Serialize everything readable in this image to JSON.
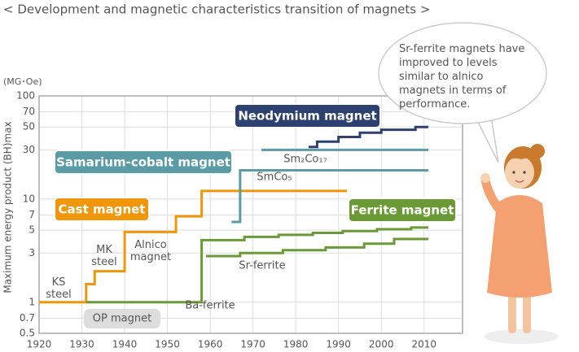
{
  "chart_data": {
    "type": "line",
    "title": "< Development and magnetic characteristics transition of magnets >",
    "y_unit": "(MG･Oe)",
    "y_label": "Maximum energy product (BH)max",
    "log_y": true,
    "grid": true,
    "xlim": [
      1920,
      2019
    ],
    "xticks": [
      1920,
      1930,
      1940,
      1950,
      1960,
      1970,
      1980,
      1990,
      2000,
      2010
    ],
    "ylim": [
      0.5,
      100
    ],
    "yticks": [
      0.5,
      0.7,
      1,
      3,
      5,
      7,
      10,
      30,
      50,
      70,
      100
    ],
    "series": [
      {
        "name": "Cast magnet",
        "color": "#f0960a",
        "x": [
          1920,
          1931,
          1931,
          1933,
          1933,
          1940,
          1940,
          1952,
          1952,
          1958,
          1958,
          1992
        ],
        "values": [
          1,
          1,
          1.5,
          1.5,
          2,
          2,
          4.8,
          4.8,
          6.8,
          6.8,
          12,
          12
        ]
      },
      {
        "name": "Ferrite magnet",
        "color": "#6a9a35",
        "x": [
          1931,
          1958,
          1958,
          1968,
          1968,
          1976,
          1976,
          1984,
          1984,
          1991,
          1991,
          1999,
          1999,
          2007,
          2007,
          2011
        ],
        "values": [
          1,
          1,
          4,
          4,
          4.3,
          4.3,
          4.5,
          4.5,
          4.7,
          4.7,
          4.9,
          4.9,
          5.1,
          5.1,
          5.3,
          5.3
        ]
      },
      {
        "color": "#6a9a35",
        "x": [
          1959,
          1967,
          1967,
          1977,
          1977,
          1987,
          1987,
          1996,
          1996,
          2003,
          2003,
          2011
        ],
        "values": [
          2.8,
          2.8,
          3,
          3,
          3.2,
          3.2,
          3.4,
          3.4,
          3.7,
          3.7,
          4.1,
          4.1
        ]
      },
      {
        "name": "Samarium-cobalt magnet",
        "color": "#5b9ba6",
        "x": [
          1965,
          1967,
          1967,
          2011
        ],
        "values": [
          6,
          6,
          19,
          19
        ]
      },
      {
        "color": "#5b9ba6",
        "x": [
          1972,
          2011
        ],
        "values": [
          30,
          30
        ]
      },
      {
        "name": "Neodymium magnet",
        "color": "#2d4170",
        "x": [
          1983,
          1985,
          1985,
          1990,
          1990,
          1995,
          1995,
          2000,
          2000,
          2008,
          2008,
          2011
        ],
        "values": [
          32,
          32,
          36,
          36,
          40,
          40,
          44,
          44,
          47,
          47,
          50,
          50
        ]
      }
    ],
    "annotations": [
      "KS steel",
      "MK steel",
      "Alnico magnet",
      "OP magnet",
      "Ba-ferrite",
      "Sr-ferrite",
      "SmCo₅",
      "Sm₂Co₁₇"
    ],
    "speech": "Sr-ferrite magnets have improved to levels similar to alnico magnets in terms of performance."
  }
}
